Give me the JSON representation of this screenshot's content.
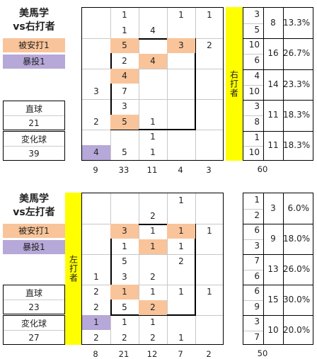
{
  "top": {
    "title_line1": "美馬学",
    "title_line2": "vs右打者",
    "hit_label": "被安打1",
    "wild_label": "暴投1",
    "fastball_label": "直球",
    "fastball_count": "21",
    "breaking_label": "変化球",
    "breaking_count": "39",
    "side_label": "右打者",
    "cells": [
      [
        "",
        "1",
        "",
        "1",
        "1",
        ""
      ],
      [
        "",
        "1",
        "4",
        "",
        "",
        ""
      ],
      [
        "",
        "5",
        "",
        "3",
        "2",
        ""
      ],
      [
        "",
        "2",
        "4",
        "",
        "",
        ""
      ],
      [
        "",
        "4",
        "",
        "",
        "",
        ""
      ],
      [
        "3",
        "7",
        "",
        "",
        "",
        ""
      ],
      [
        "",
        "3",
        "",
        "",
        "",
        ""
      ],
      [
        "2",
        "5",
        "1",
        "",
        "",
        ""
      ],
      [
        "",
        "",
        "1",
        "",
        "",
        ""
      ],
      [
        "4",
        "5",
        "1",
        "",
        "",
        ""
      ]
    ],
    "col_totals": [
      "9",
      "33",
      "11",
      "4",
      "3"
    ],
    "rows": [
      {
        "a": "3",
        "b": "5",
        "total": "8",
        "pct": "13.3%"
      },
      {
        "a": "10",
        "b": "6",
        "total": "16",
        "pct": "26.7%"
      },
      {
        "a": "4",
        "b": "10",
        "total": "14",
        "pct": "23.3%"
      },
      {
        "a": "3",
        "b": "8",
        "total": "11",
        "pct": "18.3%"
      },
      {
        "a": "1",
        "b": "10",
        "total": "11",
        "pct": "18.3%"
      }
    ],
    "grand_total": "60"
  },
  "bottom": {
    "title_line1": "美馬学",
    "title_line2": "vs左打者",
    "hit_label": "被安打1",
    "wild_label": "暴投1",
    "fastball_label": "直球",
    "fastball_count": "23",
    "breaking_label": "変化球",
    "breaking_count": "27",
    "side_label": "左打者",
    "cells": [
      [
        "",
        "",
        "",
        "1",
        "",
        ""
      ],
      [
        "",
        "",
        "2",
        "",
        "",
        ""
      ],
      [
        "",
        "3",
        "1",
        "1",
        "1",
        ""
      ],
      [
        "",
        "1",
        "1",
        "1",
        "",
        ""
      ],
      [
        "",
        "5",
        "",
        "2",
        "",
        ""
      ],
      [
        "1",
        "3",
        "2",
        "",
        "",
        ""
      ],
      [
        "2",
        "1",
        "1",
        "1",
        "1",
        ""
      ],
      [
        "2",
        "5",
        "2",
        "",
        "",
        ""
      ],
      [
        "1",
        "1",
        "1",
        "",
        "",
        ""
      ],
      [
        "2",
        "2",
        "2",
        "1",
        "",
        ""
      ]
    ],
    "col_totals": [
      "8",
      "21",
      "12",
      "7",
      "2"
    ],
    "rows": [
      {
        "a": "1",
        "b": "2",
        "total": "3",
        "pct": "6.0%"
      },
      {
        "a": "6",
        "b": "3",
        "total": "9",
        "pct": "18.0%"
      },
      {
        "a": "7",
        "b": "6",
        "total": "13",
        "pct": "26.0%"
      },
      {
        "a": "6",
        "b": "9",
        "total": "15",
        "pct": "30.0%"
      },
      {
        "a": "3",
        "b": "7",
        "total": "10",
        "pct": "20.0%"
      }
    ],
    "grand_total": "50"
  },
  "colors": {
    "hit": "#f9c49a",
    "wild": "#b6a8d8",
    "bar": "#ffff00"
  }
}
